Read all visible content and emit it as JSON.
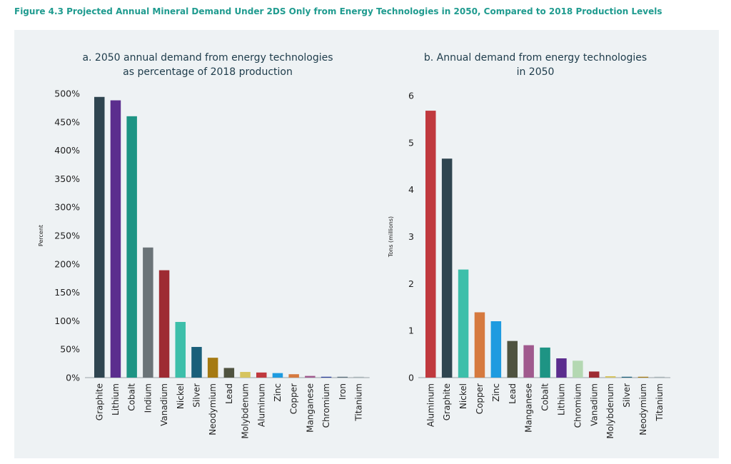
{
  "figure_title": "Figure 4.3 Projected Annual Mineral Demand Under 2DS Only from Energy Technologies in 2050, Compared to 2018 Production Levels",
  "chart_data": [
    {
      "type": "bar",
      "title": [
        "a. 2050 annual demand from energy technologies",
        "as percentage of 2018 production"
      ],
      "ylabel": "Percent",
      "ylim": [
        0,
        500
      ],
      "yticks": [
        0,
        50,
        100,
        150,
        200,
        250,
        300,
        350,
        400,
        450,
        500
      ],
      "ytick_labels": [
        "0%",
        "50%",
        "100%",
        "150%",
        "200%",
        "250%",
        "300%",
        "350%",
        "400%",
        "450%",
        "500%"
      ],
      "categories": [
        "Graphite",
        "Lithium",
        "Cobalt",
        "Indium",
        "Vanadium",
        "Nickel",
        "Silver",
        "Neodymium",
        "Lead",
        "Molybdenum",
        "Aluminum",
        "Zinc",
        "Copper",
        "Manganese",
        "Chromium",
        "Iron",
        "Titanium"
      ],
      "values": [
        494,
        488,
        460,
        229,
        189,
        98,
        54,
        35,
        17,
        10,
        9,
        8,
        6,
        3,
        1,
        1,
        1
      ],
      "colors": [
        "#2f4550",
        "#5b2d8e",
        "#1e9484",
        "#6b7478",
        "#9e2b33",
        "#3dbfaa",
        "#1a5f7a",
        "#a57a12",
        "#4f5340",
        "#d6c45e",
        "#c0393e",
        "#1e9be0",
        "#d67a3f",
        "#a05a8e",
        "#2a3f9a",
        "#5a6e7a",
        "#a8b4b8"
      ],
      "grid": false
    },
    {
      "type": "bar",
      "title": [
        "b. Annual demand from energy technologies",
        "in 2050"
      ],
      "ylabel": "Tons (millions)",
      "ylim": [
        0,
        6
      ],
      "yticks": [
        0,
        1,
        2,
        3,
        4,
        5,
        6
      ],
      "ytick_labels": [
        "0",
        "1",
        "2",
        "3",
        "4",
        "5",
        "6"
      ],
      "categories": [
        "Aluminum",
        "Graphite",
        "Nickel",
        "Copper",
        "Zinc",
        "Lead",
        "Manganese",
        "Cobalt",
        "Lithium",
        "Chromium",
        "Vanadium",
        "Molybdenum",
        "Silver",
        "Neodymium",
        "Titanium"
      ],
      "values": [
        5.68,
        4.66,
        2.3,
        1.39,
        1.2,
        0.78,
        0.69,
        0.64,
        0.41,
        0.36,
        0.13,
        0.03,
        0.01,
        0.01,
        0.01
      ],
      "colors": [
        "#c0393e",
        "#2f4550",
        "#3dbfaa",
        "#d67a3f",
        "#1e9be0",
        "#4f5340",
        "#a05a8e",
        "#1e9484",
        "#5b2d8e",
        "#b4d8b2",
        "#9e2b33",
        "#d6c45e",
        "#1a5f7a",
        "#a57a12",
        "#a8b4b8"
      ],
      "grid": false
    }
  ]
}
